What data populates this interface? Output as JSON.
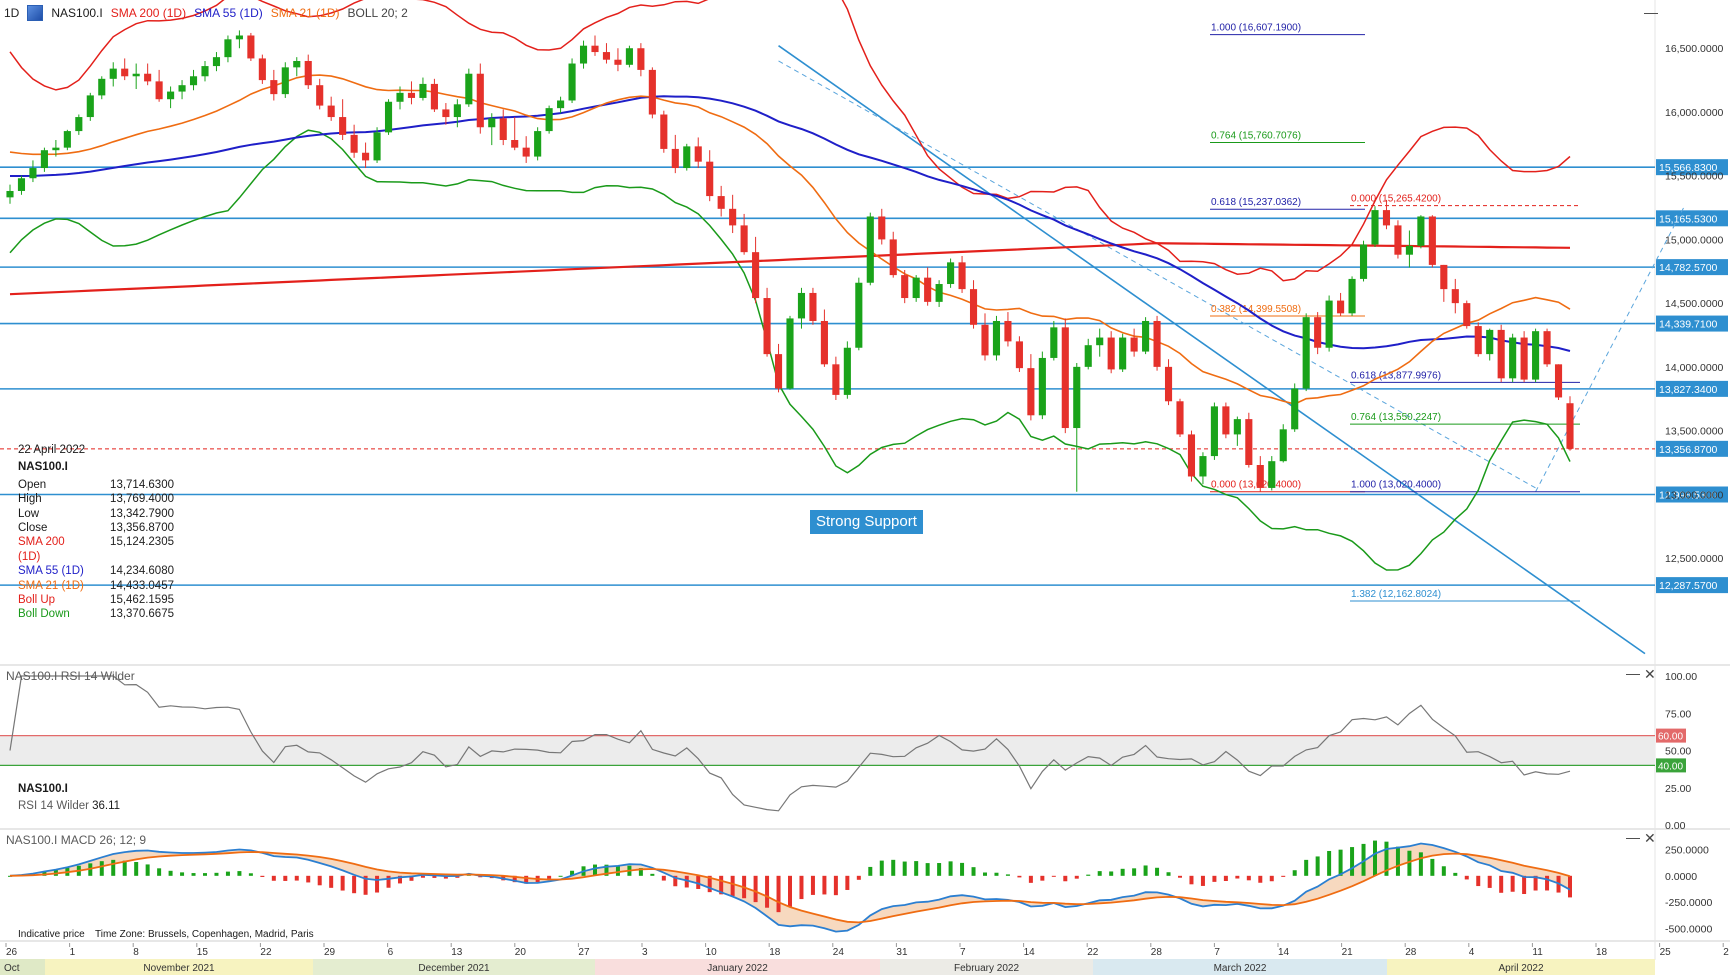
{
  "toolbar": {
    "timeframe": "1D",
    "symbol": "NAS100.I",
    "indicators": [
      {
        "label": "SMA 200 (1D)",
        "color": "#e3201b"
      },
      {
        "label": "SMA 55 (1D)",
        "color": "#1f1fc8"
      },
      {
        "label": "SMA 21 (1D)",
        "color": "#ef6c12"
      },
      {
        "label": "BOLL 20; 2",
        "color": "#444444"
      }
    ]
  },
  "info_panel": {
    "date": "22 April 2022",
    "symbol": "NAS100.I",
    "rows": [
      {
        "label": "Open",
        "value": "13,714.6300",
        "color": "#222222"
      },
      {
        "label": "High",
        "value": "13,769.4000",
        "color": "#222222"
      },
      {
        "label": "Low",
        "value": "13,342.7900",
        "color": "#222222"
      },
      {
        "label": "Close",
        "value": "13,356.8700",
        "color": "#222222"
      },
      {
        "label": "SMA 200 (1D)",
        "value": "15,124.2305",
        "color": "#e3201b"
      },
      {
        "label": "SMA 55 (1D)",
        "value": "14,234.6080",
        "color": "#1f1fc8"
      },
      {
        "label": "SMA 21 (1D)",
        "value": "14,433.0457",
        "color": "#ef6c12"
      },
      {
        "label": "Boll Up",
        "value": "15,462.1595",
        "color": "#e3201b"
      },
      {
        "label": "Boll Down",
        "value": "13,370.6675",
        "color": "#1a9a1a"
      }
    ]
  },
  "annotation": {
    "strong_support": "Strong Support"
  },
  "rsi_panel": {
    "title": "NAS100.I  RSI 14 Wilder",
    "symbol": "NAS100.I",
    "label": "RSI 14 Wilder",
    "value": "36.11"
  },
  "macd_panel": {
    "title": "NAS100.I  MACD 26; 12; 9"
  },
  "footer": {
    "indicative": "Indicative price",
    "timezone": "Time Zone: Brussels, Copenhagen, Madrid, Paris"
  },
  "chart_data": {
    "type": "candlestick",
    "symbol": "NAS100.I",
    "timeframe": "1D",
    "price_axis": {
      "range": [
        11700,
        16800
      ],
      "ticks": [
        16500,
        16000,
        15500,
        15000,
        14500,
        14000,
        13500,
        13000,
        12500
      ],
      "tick_labels": [
        "16,500.0000",
        "16,000.0000",
        "15,500.0000",
        "15,000.0000",
        "14,500.0000",
        "14,000.0000",
        "13,500.0000",
        "13,000.0000",
        "12,500.0000"
      ]
    },
    "x_axis": {
      "day_labels": [
        "26",
        "1",
        "8",
        "15",
        "22",
        "29",
        "6",
        "13",
        "20",
        "27",
        "3",
        "10",
        "18",
        "24",
        "31",
        "7",
        "14",
        "22",
        "28",
        "7",
        "14",
        "21",
        "28",
        "4",
        "11",
        "18",
        "25",
        "2"
      ],
      "months": [
        "Oct",
        "November 2021",
        "December 2021",
        "January 2022",
        "February 2022",
        "March 2022",
        "April 2022"
      ],
      "month_colors": [
        "#dfe9c6",
        "#f7f3c0",
        "#e4edd0",
        "#f9dedd",
        "#ecebe6",
        "#d9e9f0",
        "#f7f3c0"
      ]
    },
    "candles": [
      [
        15330,
        15430,
        15280,
        15380
      ],
      [
        15380,
        15500,
        15350,
        15480
      ],
      [
        15480,
        15620,
        15450,
        15560
      ],
      [
        15560,
        15720,
        15530,
        15700
      ],
      [
        15700,
        15780,
        15650,
        15720
      ],
      [
        15720,
        15860,
        15700,
        15850
      ],
      [
        15850,
        15980,
        15820,
        15960
      ],
      [
        15960,
        16150,
        15930,
        16130
      ],
      [
        16130,
        16280,
        16100,
        16260
      ],
      [
        16260,
        16390,
        16200,
        16340
      ],
      [
        16340,
        16420,
        16250,
        16280
      ],
      [
        16280,
        16380,
        16180,
        16300
      ],
      [
        16300,
        16380,
        16210,
        16240
      ],
      [
        16240,
        16330,
        16080,
        16100
      ],
      [
        16100,
        16200,
        16030,
        16160
      ],
      [
        16160,
        16250,
        16100,
        16210
      ],
      [
        16210,
        16330,
        16170,
        16280
      ],
      [
        16280,
        16400,
        16240,
        16360
      ],
      [
        16360,
        16470,
        16320,
        16430
      ],
      [
        16430,
        16600,
        16390,
        16570
      ],
      [
        16570,
        16640,
        16500,
        16600
      ],
      [
        16600,
        16620,
        16400,
        16420
      ],
      [
        16420,
        16450,
        16220,
        16250
      ],
      [
        16250,
        16330,
        16090,
        16140
      ],
      [
        16140,
        16390,
        16110,
        16350
      ],
      [
        16350,
        16430,
        16280,
        16400
      ],
      [
        16400,
        16450,
        16180,
        16210
      ],
      [
        16210,
        16260,
        16020,
        16050
      ],
      [
        16050,
        16120,
        15930,
        15960
      ],
      [
        15960,
        16100,
        15780,
        15820
      ],
      [
        15820,
        15900,
        15640,
        15680
      ],
      [
        15680,
        15760,
        15560,
        15620
      ],
      [
        15620,
        15880,
        15600,
        15840
      ],
      [
        15840,
        16100,
        15820,
        16080
      ],
      [
        16080,
        16200,
        16020,
        16150
      ],
      [
        16150,
        16240,
        16060,
        16110
      ],
      [
        16110,
        16270,
        16090,
        16220
      ],
      [
        16220,
        16260,
        16000,
        16020
      ],
      [
        16020,
        16070,
        15900,
        15960
      ],
      [
        15960,
        16100,
        15880,
        16060
      ],
      [
        16060,
        16340,
        16040,
        16300
      ],
      [
        16300,
        16380,
        15830,
        15880
      ],
      [
        15880,
        15990,
        15740,
        15950
      ],
      [
        15950,
        16020,
        15740,
        15780
      ],
      [
        15780,
        15960,
        15700,
        15720
      ],
      [
        15720,
        15810,
        15600,
        15650
      ],
      [
        15650,
        15880,
        15620,
        15850
      ],
      [
        15850,
        16050,
        15830,
        16030
      ],
      [
        16030,
        16120,
        15990,
        16090
      ],
      [
        16090,
        16420,
        16070,
        16380
      ],
      [
        16380,
        16560,
        16340,
        16520
      ],
      [
        16520,
        16600,
        16440,
        16470
      ],
      [
        16470,
        16540,
        16380,
        16410
      ],
      [
        16410,
        16500,
        16320,
        16370
      ],
      [
        16370,
        16520,
        16350,
        16500
      ],
      [
        16500,
        16540,
        16280,
        16330
      ],
      [
        16330,
        16350,
        15950,
        15980
      ],
      [
        15980,
        16010,
        15680,
        15710
      ],
      [
        15710,
        15820,
        15520,
        15560
      ],
      [
        15560,
        15750,
        15540,
        15730
      ],
      [
        15730,
        15800,
        15560,
        15610
      ],
      [
        15610,
        15700,
        15300,
        15340
      ],
      [
        15340,
        15420,
        15180,
        15240
      ],
      [
        15240,
        15350,
        15050,
        15110
      ],
      [
        15110,
        15200,
        14880,
        14900
      ],
      [
        14900,
        15020,
        14500,
        14540
      ],
      [
        14540,
        14620,
        14080,
        14100
      ],
      [
        14100,
        14180,
        13800,
        13830
      ],
      [
        13830,
        14400,
        13820,
        14380
      ],
      [
        14380,
        14620,
        14300,
        14580
      ],
      [
        14580,
        14620,
        14330,
        14360
      ],
      [
        14360,
        14450,
        14000,
        14020
      ],
      [
        14020,
        14080,
        13740,
        13780
      ],
      [
        13780,
        14200,
        13750,
        14150
      ],
      [
        14150,
        14700,
        14130,
        14660
      ],
      [
        14660,
        15210,
        14640,
        15180
      ],
      [
        15180,
        15240,
        14960,
        15000
      ],
      [
        15000,
        15060,
        14700,
        14720
      ],
      [
        14720,
        14760,
        14500,
        14540
      ],
      [
        14540,
        14720,
        14510,
        14700
      ],
      [
        14700,
        14780,
        14480,
        14510
      ],
      [
        14510,
        14680,
        14470,
        14650
      ],
      [
        14650,
        14850,
        14620,
        14820
      ],
      [
        14820,
        14870,
        14580,
        14610
      ],
      [
        14610,
        14680,
        14300,
        14330
      ],
      [
        14330,
        14420,
        14050,
        14090
      ],
      [
        14090,
        14400,
        14050,
        14360
      ],
      [
        14360,
        14430,
        14160,
        14200
      ],
      [
        14200,
        14240,
        13960,
        13990
      ],
      [
        13990,
        14100,
        13580,
        13620
      ],
      [
        13620,
        14120,
        13590,
        14070
      ],
      [
        14070,
        14360,
        14050,
        14310
      ],
      [
        14310,
        14380,
        13480,
        13520
      ],
      [
        13520,
        14030,
        13020,
        14000
      ],
      [
        14000,
        14220,
        13980,
        14170
      ],
      [
        14170,
        14300,
        14080,
        14230
      ],
      [
        14230,
        14280,
        13950,
        13980
      ],
      [
        13980,
        14260,
        13960,
        14230
      ],
      [
        14230,
        14300,
        14080,
        14120
      ],
      [
        14120,
        14390,
        14100,
        14360
      ],
      [
        14360,
        14400,
        13970,
        14000
      ],
      [
        14000,
        14060,
        13700,
        13730
      ],
      [
        13730,
        13750,
        13450,
        13470
      ],
      [
        13470,
        13500,
        13100,
        13140
      ],
      [
        13140,
        13330,
        13080,
        13300
      ],
      [
        13300,
        13720,
        13270,
        13690
      ],
      [
        13690,
        13720,
        13440,
        13470
      ],
      [
        13470,
        13610,
        13380,
        13590
      ],
      [
        13590,
        13640,
        13210,
        13230
      ],
      [
        13230,
        13300,
        13020,
        13050
      ],
      [
        13050,
        13300,
        13030,
        13260
      ],
      [
        13260,
        13550,
        13250,
        13510
      ],
      [
        13510,
        13870,
        13490,
        13830
      ],
      [
        13830,
        14420,
        13810,
        14390
      ],
      [
        14390,
        14430,
        14100,
        14150
      ],
      [
        14150,
        14560,
        14120,
        14520
      ],
      [
        14520,
        14580,
        14400,
        14420
      ],
      [
        14420,
        14710,
        14400,
        14690
      ],
      [
        14690,
        14990,
        14670,
        14960
      ],
      [
        14960,
        15260,
        14940,
        15230
      ],
      [
        15230,
        15310,
        15080,
        15110
      ],
      [
        15110,
        15150,
        14850,
        14880
      ],
      [
        14880,
        15070,
        14780,
        14950
      ],
      [
        14950,
        15190,
        14930,
        15180
      ],
      [
        15180,
        15190,
        14780,
        14800
      ],
      [
        14800,
        14800,
        14510,
        14610
      ],
      [
        14610,
        14690,
        14420,
        14500
      ],
      [
        14500,
        14520,
        14300,
        14320
      ],
      [
        14320,
        14350,
        14080,
        14100
      ],
      [
        14100,
        14300,
        14050,
        14290
      ],
      [
        14290,
        14330,
        13880,
        13910
      ],
      [
        13910,
        14260,
        13880,
        14230
      ],
      [
        14230,
        14280,
        13880,
        13900
      ],
      [
        13900,
        14300,
        13880,
        14280
      ],
      [
        14280,
        14300,
        14000,
        14020
      ],
      [
        14020,
        14020,
        13740,
        13760
      ],
      [
        13714.63,
        13769.4,
        13342.79,
        13356.87
      ]
    ],
    "current_price": 13356.87,
    "horizontal_levels": [
      {
        "value": 15566.83,
        "label": "15,566.8300"
      },
      {
        "value": 15165.53,
        "label": "15,165.5300"
      },
      {
        "value": 14782.57,
        "label": "14,782.5700"
      },
      {
        "value": 14339.71,
        "label": "14,339.7100"
      },
      {
        "value": 13827.34,
        "label": "13,827.3400"
      },
      {
        "value": 12998.53,
        "label": "12,998.5300"
      },
      {
        "value": 12287.57,
        "label": "12,287.5700"
      }
    ],
    "current_label": "13,356.8700",
    "fibonacci_sets": [
      {
        "color": "#2323a8",
        "levels": [
          {
            "label": "1.000 (16,607.1900)",
            "value": 16607.19
          },
          {
            "label": "0.764 (15,760.7076)",
            "value": 15760.71
          },
          {
            "label": "0.618 (15,237.0362)",
            "value": 15237.04
          },
          {
            "label": "0.382 (14,399.5508)",
            "value": 14399.55
          },
          {
            "label": "0.000 (13,020.4000)",
            "value": 13020.4
          }
        ]
      },
      {
        "color": "#2323a8",
        "levels": [
          {
            "label": "0.000 (15,265.4200)",
            "value": 15265.42
          },
          {
            "label": "0.618 (13,877.9976)",
            "value": 13877.9976
          },
          {
            "label": "0.764 (13,550.2247)",
            "value": 13550.2247
          },
          {
            "label": "1.000 (13,020.4000)",
            "value": 13020.4
          },
          {
            "label": "1.382 (12,162.8024)",
            "value": 12162.8024
          }
        ]
      }
    ],
    "rsi": {
      "axis": [
        0,
        100
      ],
      "tick_labels": [
        "100.00",
        "75.00",
        "50.00",
        "25.00",
        "0.00"
      ],
      "levels": [
        60,
        40
      ],
      "level_labels": [
        "60.00",
        "40.00"
      ],
      "last": 36.11
    },
    "macd": {
      "tick_labels": [
        "250.0000",
        "0.0000",
        "-250.0000",
        "-500.0000"
      ],
      "ticks": [
        250,
        0,
        -250,
        -500
      ]
    }
  }
}
